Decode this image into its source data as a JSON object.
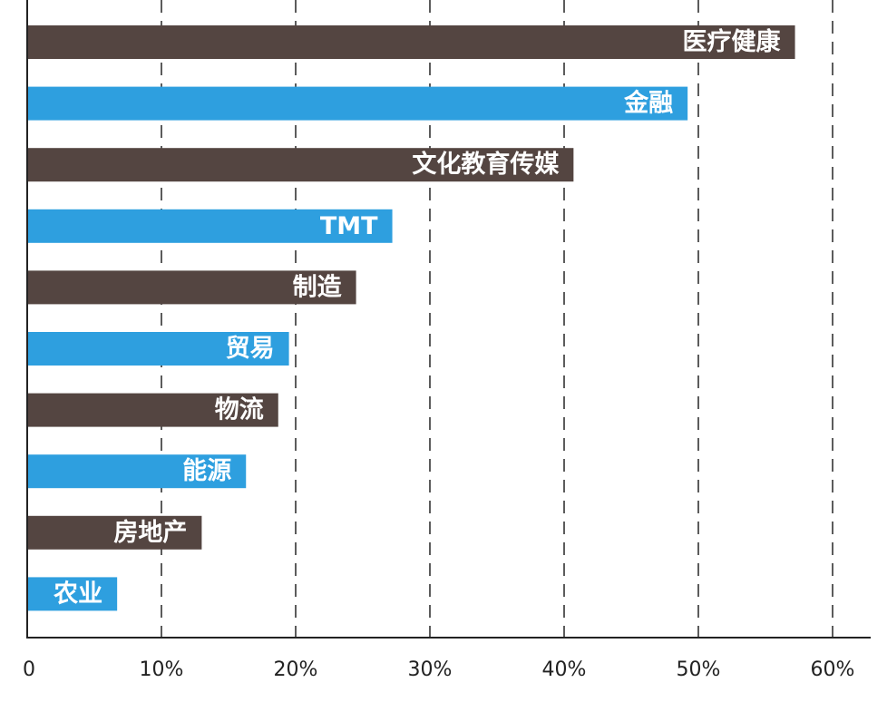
{
  "chart_data": {
    "type": "bar",
    "orientation": "horizontal",
    "title": "",
    "xlabel": "",
    "ylabel": "",
    "categories": [
      "医疗健康",
      "金融",
      "文化教育传媒",
      "TMT",
      "制造",
      "贸易",
      "物流",
      "能源",
      "房地产",
      "农业"
    ],
    "values": [
      57.2,
      49.2,
      40.7,
      27.2,
      24.5,
      19.5,
      18.7,
      16.3,
      13.0,
      6.7
    ],
    "bar_colors": [
      "#544541",
      "#2e9fdf",
      "#544541",
      "#2e9fdf",
      "#544541",
      "#2e9fdf",
      "#544541",
      "#2e9fdf",
      "#544541",
      "#2e9fdf"
    ],
    "xlim": [
      0,
      60
    ],
    "x_ticks": [
      0,
      10,
      20,
      30,
      40,
      50,
      60
    ],
    "x_tick_labels": [
      "0",
      "10%",
      "20%",
      "30%",
      "40%",
      "50%",
      "60%"
    ],
    "grid": "vertical-dashed",
    "legend": "none",
    "label_color": "#ffffff"
  }
}
